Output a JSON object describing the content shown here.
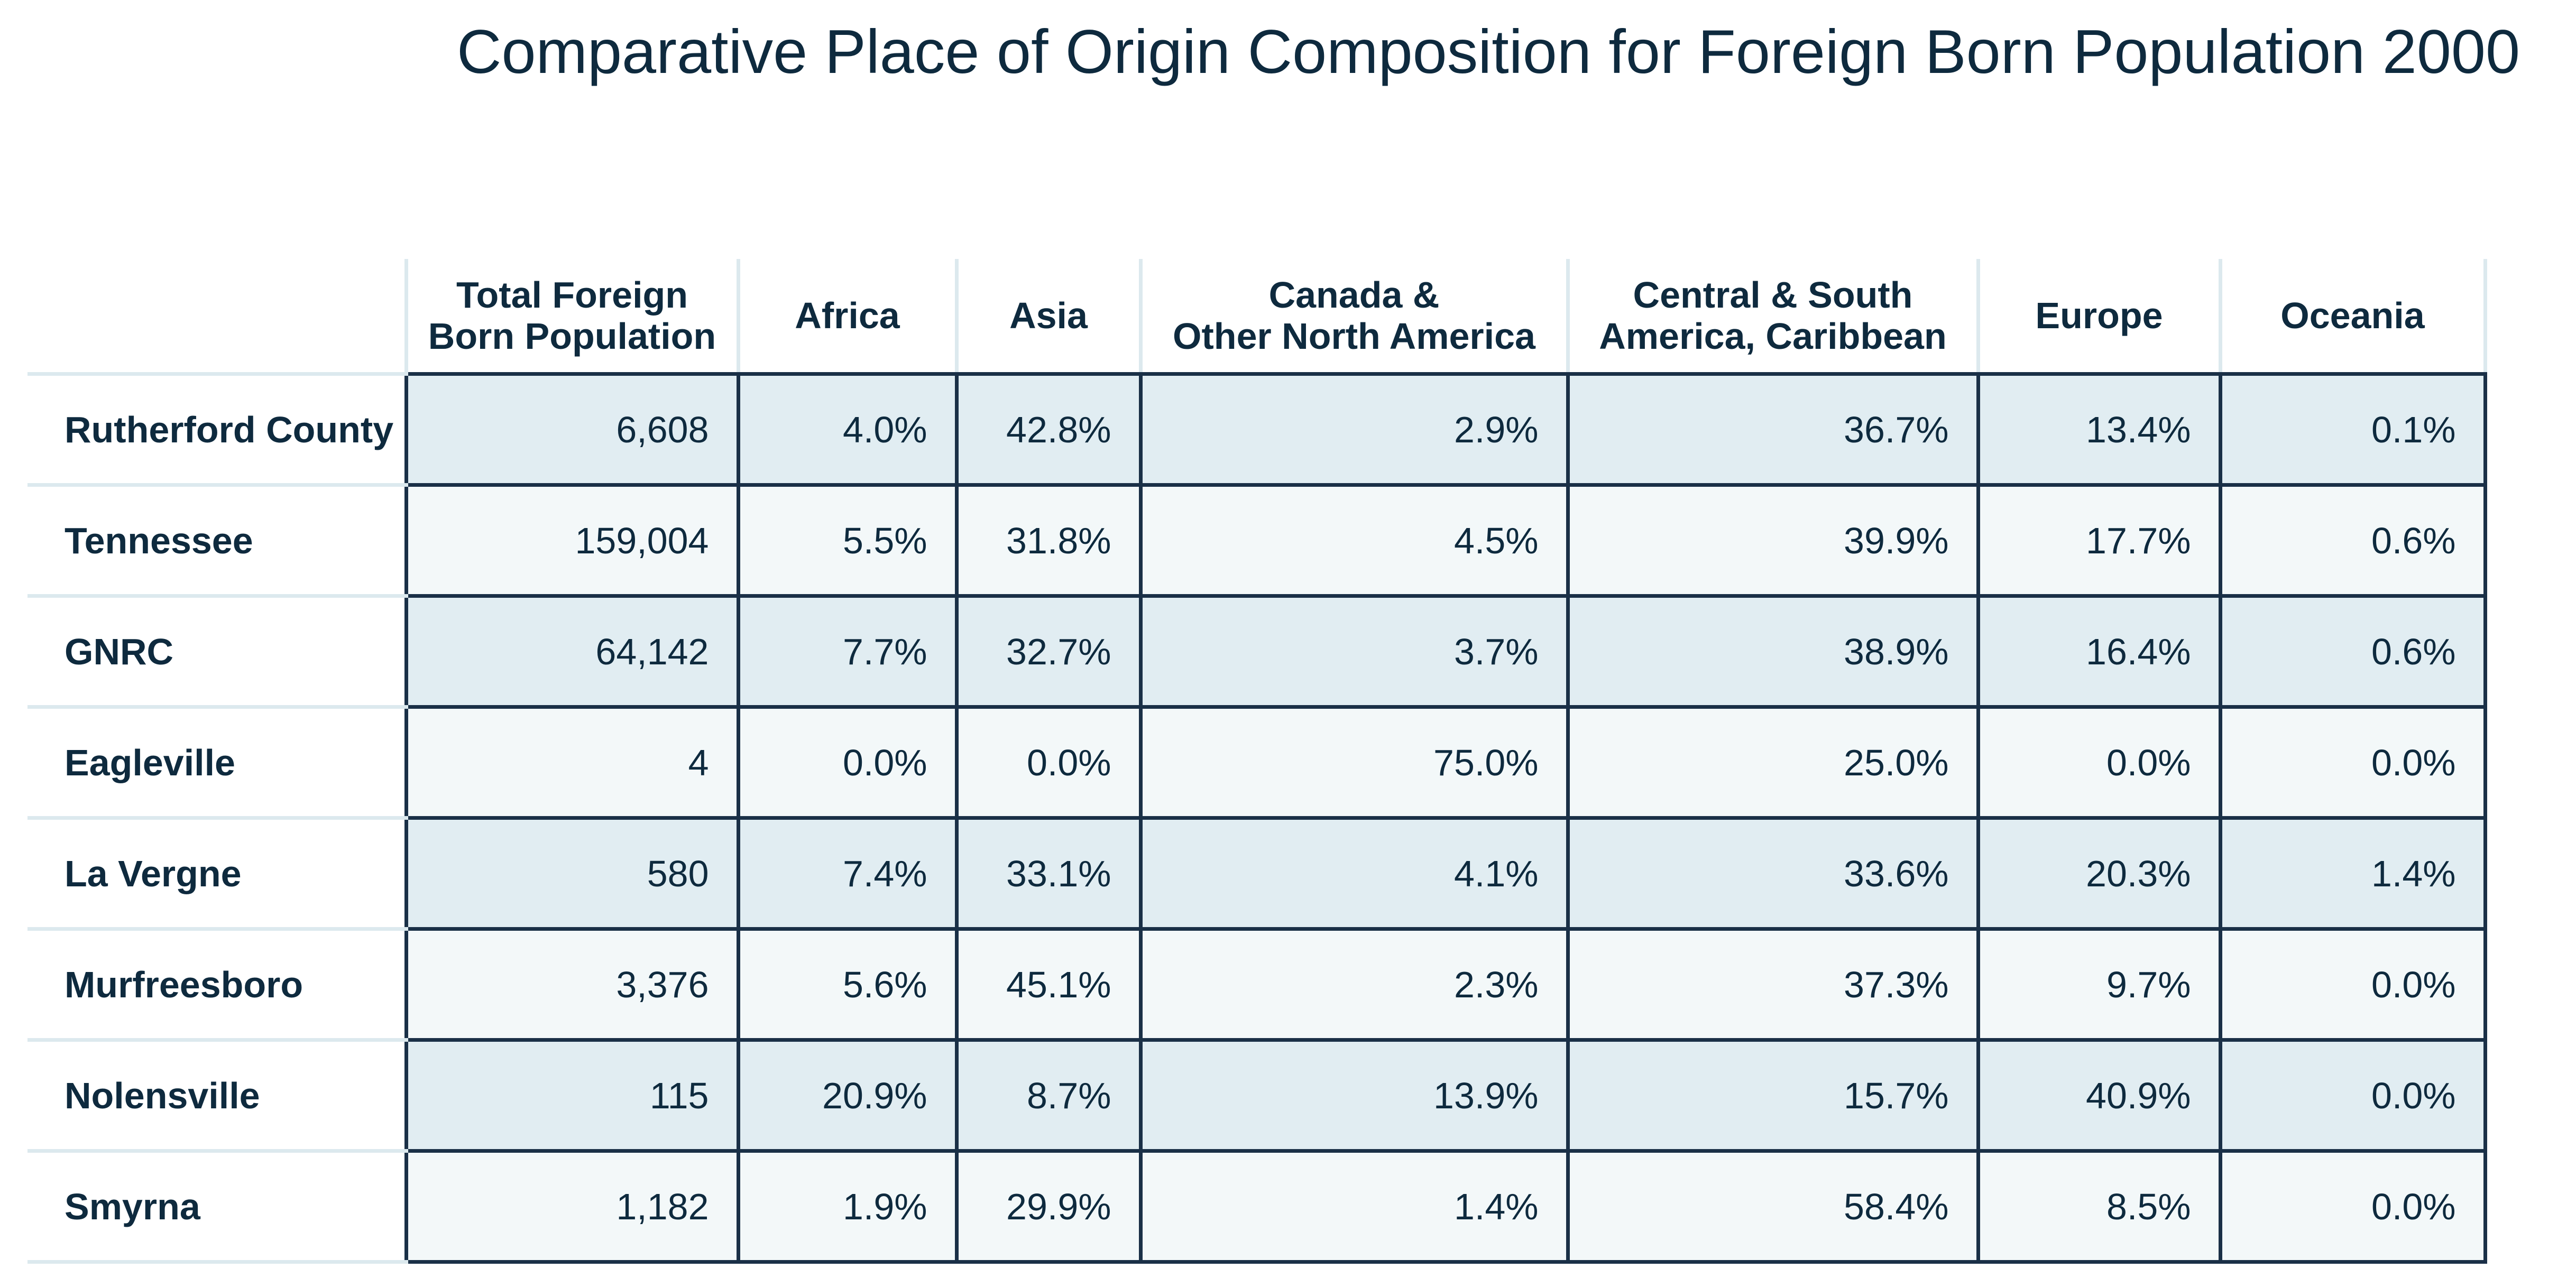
{
  "title": "Comparative Place of Origin Composition for Foreign Born Population 2000",
  "columns": [
    {
      "line1": "Total Foreign",
      "line2": "Born Population"
    },
    {
      "line1": "Africa",
      "line2": ""
    },
    {
      "line1": "Asia",
      "line2": ""
    },
    {
      "line1": "Canada &",
      "line2": "Other North America"
    },
    {
      "line1": "Central & South",
      "line2": "America, Caribbean"
    },
    {
      "line1": "Europe",
      "line2": ""
    },
    {
      "line1": "Oceania",
      "line2": ""
    }
  ],
  "rows": [
    {
      "name": "Rutherford County",
      "total": "6,608",
      "africa": "4.0%",
      "asia": "42.8%",
      "canada": "2.9%",
      "central": "36.7%",
      "europe": "13.4%",
      "oceania": "0.1%"
    },
    {
      "name": "Tennessee",
      "total": "159,004",
      "africa": "5.5%",
      "asia": "31.8%",
      "canada": "4.5%",
      "central": "39.9%",
      "europe": "17.7%",
      "oceania": "0.6%"
    },
    {
      "name": "GNRC",
      "total": "64,142",
      "africa": "7.7%",
      "asia": "32.7%",
      "canada": "3.7%",
      "central": "38.9%",
      "europe": "16.4%",
      "oceania": "0.6%"
    },
    {
      "name": "Eagleville",
      "total": "4",
      "africa": "0.0%",
      "asia": "0.0%",
      "canada": "75.0%",
      "central": "25.0%",
      "europe": "0.0%",
      "oceania": "0.0%"
    },
    {
      "name": "La Vergne",
      "total": "580",
      "africa": "7.4%",
      "asia": "33.1%",
      "canada": "4.1%",
      "central": "33.6%",
      "europe": "20.3%",
      "oceania": "1.4%"
    },
    {
      "name": "Murfreesboro",
      "total": "3,376",
      "africa": "5.6%",
      "asia": "45.1%",
      "canada": "2.3%",
      "central": "37.3%",
      "europe": "9.7%",
      "oceania": "0.0%"
    },
    {
      "name": "Nolensville",
      "total": "115",
      "africa": "20.9%",
      "asia": "8.7%",
      "canada": "13.9%",
      "central": "15.7%",
      "europe": "40.9%",
      "oceania": "0.0%"
    },
    {
      "name": "Smyrna",
      "total": "1,182",
      "africa": "1.9%",
      "asia": "29.9%",
      "canada": "1.4%",
      "central": "58.4%",
      "europe": "8.5%",
      "oceania": "0.0%"
    }
  ]
}
